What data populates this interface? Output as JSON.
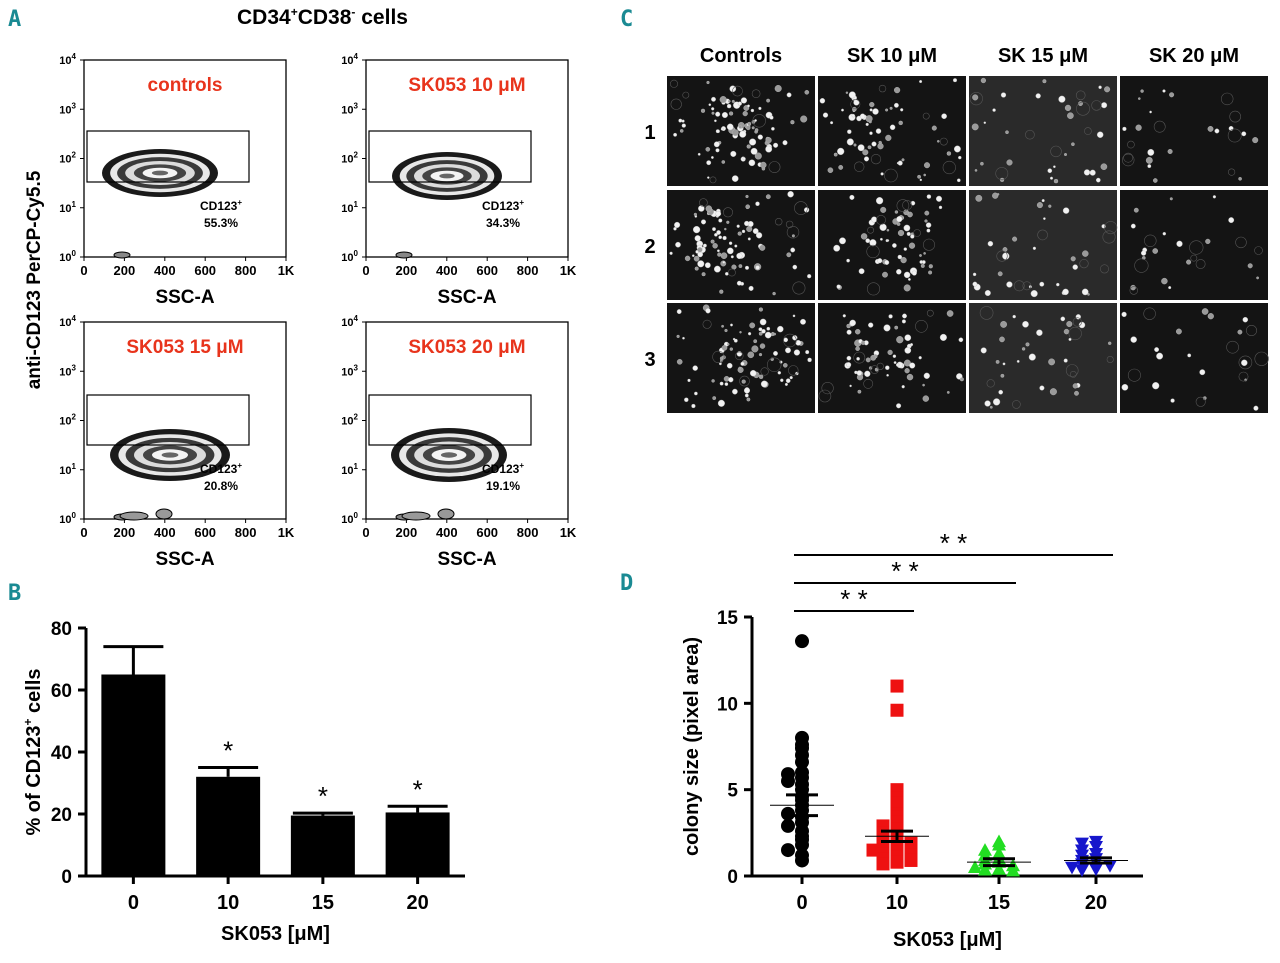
{
  "panel_letters": {
    "a": "A",
    "b": "B",
    "c": "C",
    "d": "D"
  },
  "panel_a": {
    "title_main": "CD34",
    "title_sup1": "+",
    "title_mid": "CD38",
    "title_sup2": "-",
    "title_end": " cells",
    "ylabel": "anti-CD123 PerCP-Cy5.5",
    "xlabel": "SSC-A",
    "x_ticks": [
      "0",
      "200",
      "400",
      "600",
      "800",
      "1K"
    ],
    "y_tick_base": "10",
    "y_tick_exps": [
      "0",
      "1",
      "2",
      "3",
      "4"
    ],
    "gate_label": "CD123",
    "gate_sup": "+",
    "plots": [
      {
        "label": "controls",
        "percent": "55.3%"
      },
      {
        "label": "SK053 10 μM",
        "percent": "34.3%"
      },
      {
        "label": "SK053 15 μM",
        "percent": "20.8%"
      },
      {
        "label": "SK053 20 μM",
        "percent": "19.1%"
      }
    ]
  },
  "panel_c": {
    "columns": [
      "Controls",
      "SK 10 μM",
      "SK 15 μM",
      "SK 20 μM"
    ],
    "rows": [
      "1",
      "2",
      "3"
    ]
  },
  "chart_data": [
    {
      "type": "bar",
      "panel": "B",
      "categories": [
        "0",
        "10",
        "15",
        "20"
      ],
      "values": [
        65,
        32,
        19.5,
        20.5
      ],
      "errors": [
        9,
        3,
        0.8,
        2
      ],
      "significance": [
        "",
        "*",
        "*",
        "*"
      ],
      "ylabel": "% of CD123",
      "ylabel_sup": "+",
      "ylabel_end": " cells",
      "xlabel": "SK053 [μM]",
      "ylim": [
        0,
        80
      ],
      "yticks": [
        "0",
        "20",
        "40",
        "60",
        "80"
      ],
      "color": "#000000"
    },
    {
      "type": "scatter",
      "panel": "D",
      "categories": [
        "0",
        "10",
        "15",
        "20"
      ],
      "ylabel": "colony size (pixel area)",
      "xlabel": "SK053 [μM]",
      "ylim": [
        0,
        15
      ],
      "yticks": [
        "0",
        "5",
        "10",
        "15"
      ],
      "series": [
        {
          "name": "0",
          "color": "#000000",
          "marker": "circle",
          "mean": 4.1,
          "sem": 0.6,
          "values": [
            13.6,
            8.0,
            7.6,
            7.4,
            7.0,
            6.6,
            6.0,
            5.9,
            5.7,
            5.5,
            5.3,
            5.0,
            4.6,
            4.4,
            4.1,
            3.8,
            3.6,
            3.4,
            3.1,
            2.9,
            2.6,
            2.3,
            2.1,
            1.8,
            1.5,
            1.2,
            0.9
          ]
        },
        {
          "name": "10",
          "color": "#ee1111",
          "marker": "square",
          "mean": 2.3,
          "sem": 0.3,
          "values": [
            11.0,
            9.6,
            5.0,
            4.5,
            4.2,
            3.6,
            3.4,
            3.1,
            2.9,
            2.7,
            2.5,
            2.4,
            2.2,
            2.1,
            2.0,
            1.9,
            1.8,
            1.7,
            1.6,
            1.5,
            1.4,
            1.3,
            1.2,
            1.1,
            1.0,
            0.9,
            0.8,
            0.7
          ]
        },
        {
          "name": "15",
          "color": "#22dd22",
          "marker": "triangle-up",
          "mean": 0.8,
          "sem": 0.2,
          "values": [
            2.0,
            1.8,
            1.5,
            1.3,
            1.2,
            1.0,
            0.9,
            0.8,
            0.7,
            0.6,
            0.5,
            0.4,
            0.35,
            0.3
          ]
        },
        {
          "name": "20",
          "color": "#1616cc",
          "marker": "triangle-down",
          "mean": 0.9,
          "sem": 0.15,
          "values": [
            2.0,
            1.9,
            1.7,
            1.5,
            1.3,
            1.2,
            1.0,
            0.9,
            0.8,
            0.7,
            0.6,
            0.5,
            0.4,
            0.35
          ]
        }
      ],
      "significance": [
        {
          "from": "0",
          "to": "10",
          "label": "* *"
        },
        {
          "from": "0",
          "to": "15",
          "label": "* *"
        },
        {
          "from": "0",
          "to": "20",
          "label": "* *"
        }
      ]
    }
  ]
}
